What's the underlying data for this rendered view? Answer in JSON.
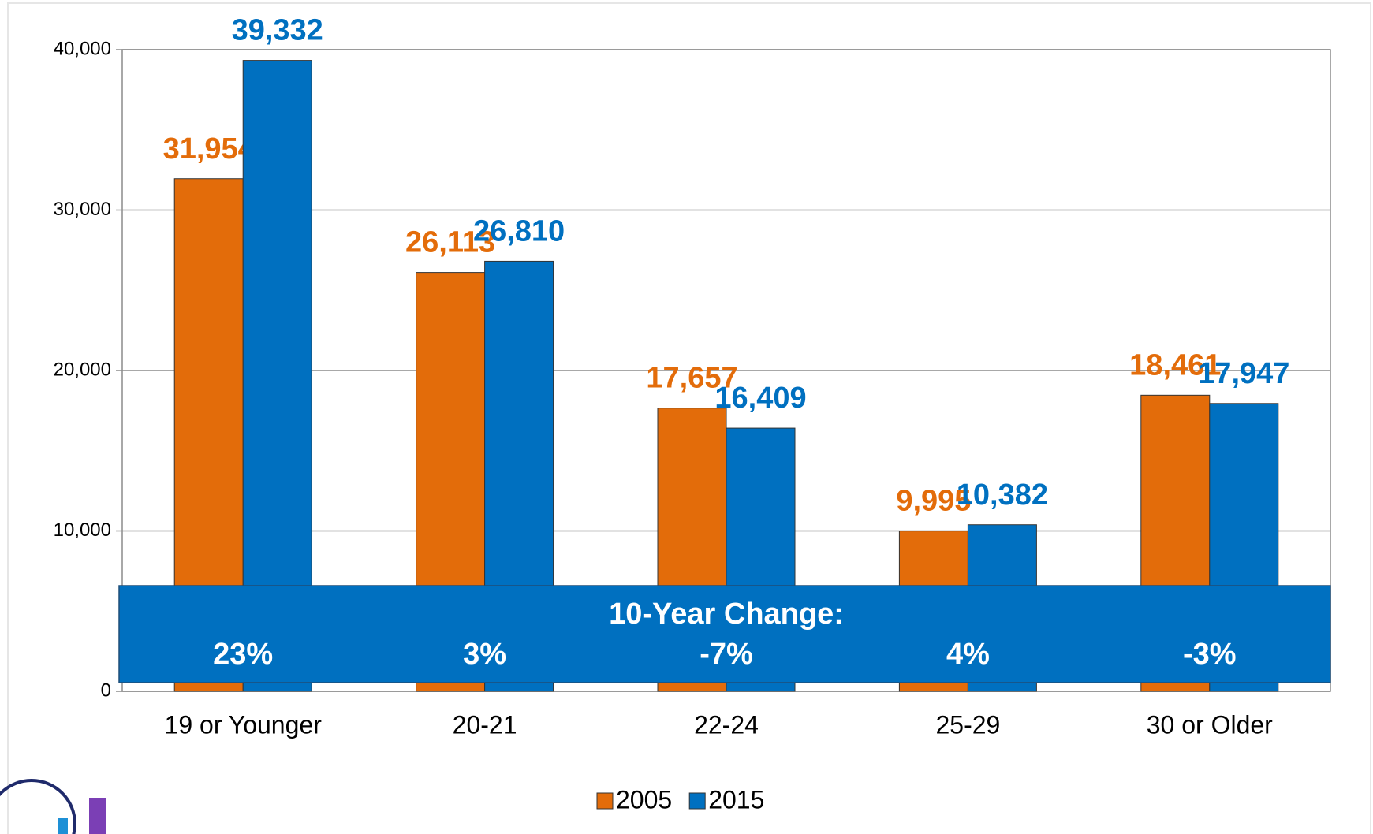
{
  "chart_data": {
    "type": "bar",
    "categories": [
      "19 or Younger",
      "20-21",
      "22-24",
      "25-29",
      "30 or Older"
    ],
    "series": [
      {
        "name": "2005",
        "color": "#e36c0a",
        "values": [
          31954,
          26113,
          17657,
          9995,
          18461
        ],
        "value_labels": [
          "31,954",
          "26,113",
          "17,657",
          "9,995",
          "18,461"
        ]
      },
      {
        "name": "2015",
        "color": "#0070c0",
        "values": [
          39332,
          26810,
          16409,
          10382,
          17947
        ],
        "value_labels": [
          "39,332",
          "26,810",
          "16,409",
          "10,382",
          "17,947"
        ]
      }
    ],
    "ylim": [
      0,
      40000
    ],
    "yticks": [
      0,
      {
        "value": 10000,
        "label": "10,000"
      },
      {
        "value": 20000,
        "label": "20,000"
      },
      {
        "value": 30000,
        "label": "30,000"
      },
      {
        "value": 40000,
        "label": "40,000"
      }
    ],
    "grid": true,
    "legend": "bottom",
    "annotation": {
      "title": "10-Year Change:",
      "color": "#0070c0",
      "values": [
        23,
        3,
        -7,
        4,
        -3
      ],
      "value_labels": [
        "23%",
        "3%",
        "-7%",
        "4%",
        "-3%"
      ]
    }
  }
}
